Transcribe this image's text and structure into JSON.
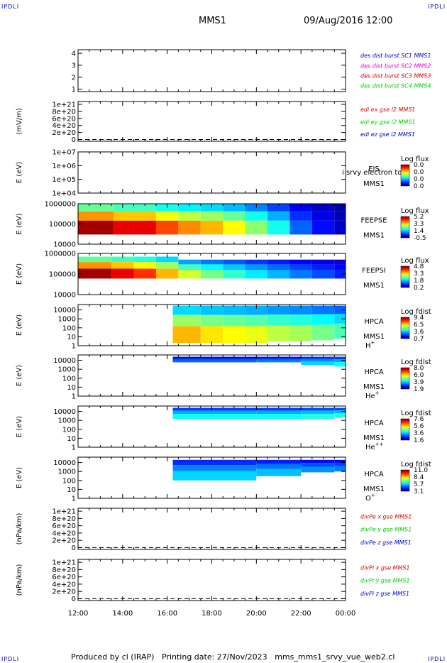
{
  "header": {
    "corner_label": "IPDLI",
    "title": "MMS1",
    "datetime": "09/Aug/2016 12:00"
  },
  "footer": {
    "produced_by": "Produced by cl (IRAP)",
    "printing_date": "Printing date: 27/Nov/2023",
    "script_name": "mms_mms1_srvy_vue_web2.cl"
  },
  "colors": {
    "red": "#dd0000",
    "green": "#00cc00",
    "blue": "#0000cc",
    "magenta": "#dd00dd",
    "line": "#000000"
  },
  "chart_data": [
    {
      "type": "line",
      "id": "des_dist_burst",
      "ylabel": "",
      "yticks": [
        "1",
        "2",
        "3",
        "4"
      ],
      "ylim": [
        0.8,
        4.3
      ],
      "series": [
        {
          "name": "des dist burst SC1 MMS1",
          "color": "#0000cc",
          "values": []
        },
        {
          "name": "des dist burst SC2 MMS2",
          "color": "#dd00dd",
          "values": []
        },
        {
          "name": "des dist burst SC3 MMS3",
          "color": "#dd0000",
          "values": []
        },
        {
          "name": "des dist burst SC4 MMS4",
          "color": "#00cc00",
          "values": []
        }
      ]
    },
    {
      "type": "line",
      "id": "edi_e_gse",
      "ylabel": "(mV/m)",
      "yticks": [
        "0",
        "2e+20",
        "4e+20",
        "6e+20",
        "8e+20",
        "1e+21"
      ],
      "ylim": [
        -5e+19,
        1.08e+21
      ],
      "zero_line": true,
      "series": [
        {
          "name": "edi ex gse l2 MMS1",
          "color": "#dd0000",
          "values": []
        },
        {
          "name": "edi ey gse l2 MMS1",
          "color": "#00cc00",
          "values": []
        },
        {
          "name": "edi ez gse l2 MMS1",
          "color": "#0000cc",
          "values": []
        }
      ]
    },
    {
      "type": "heatmap",
      "id": "eis",
      "ylabel": "E (eV)",
      "yscale": "log",
      "yticks": [
        "1e+04",
        "1e+05",
        "1e+06",
        "1e+07"
      ],
      "ylim": [
        10000,
        10000000
      ],
      "instrument": [
        "EIS",
        "MMS1"
      ],
      "overlay_text": "i srvy electron to",
      "colorbar": {
        "title": "Log flux",
        "labels": [
          "0.0",
          "0.0",
          "0.0",
          "0.0"
        ]
      },
      "spectrogram": []
    },
    {
      "type": "heatmap",
      "id": "feepse",
      "ylabel": "E (eV)",
      "yscale": "log",
      "yticks": [
        "10000",
        "100000",
        "1000000"
      ],
      "ylim": [
        10000,
        1000000
      ],
      "instrument": [
        "FEEPSE",
        "MMS1"
      ],
      "colorbar": {
        "title": "Log flux",
        "labels": [
          "5.2",
          "3.3",
          "1.4",
          "-0.5"
        ]
      },
      "spectrogram": [
        {
          "t": 12.0,
          "bottom": 30000,
          "top": 1000000,
          "level": 0.86
        },
        {
          "t": 13.6,
          "bottom": 30000,
          "top": 1000000,
          "level": 0.8
        },
        {
          "t": 14.5,
          "bottom": 30000,
          "top": 1000000,
          "level": 0.8
        },
        {
          "t": 15.5,
          "bottom": 30000,
          "top": 1000000,
          "level": 0.72
        },
        {
          "t": 16.5,
          "bottom": 30000,
          "top": 1000000,
          "level": 0.66
        },
        {
          "t": 17.5,
          "bottom": 30000,
          "top": 1000000,
          "level": 0.62
        },
        {
          "t": 18.5,
          "bottom": 30000,
          "top": 1000000,
          "level": 0.56
        },
        {
          "t": 19.5,
          "bottom": 30000,
          "top": 1000000,
          "level": 0.46
        },
        {
          "t": 20.5,
          "bottom": 30000,
          "top": 1000000,
          "level": 0.35
        },
        {
          "t": 21.5,
          "bottom": 30000,
          "top": 1000000,
          "level": 0.2
        },
        {
          "t": 22.5,
          "bottom": 30000,
          "top": 1000000,
          "level": 0.12
        },
        {
          "t": 23.5,
          "bottom": 30000,
          "top": 1000000,
          "level": 0.06
        }
      ]
    },
    {
      "type": "heatmap",
      "id": "feepsi",
      "ylabel": "E (eV)",
      "yscale": "log",
      "yticks": [
        "10000",
        "100000",
        "1000000"
      ],
      "ylim": [
        10000,
        1000000
      ],
      "instrument": [
        "FEEPSI",
        "MMS1"
      ],
      "colorbar": {
        "title": "Log flux",
        "labels": [
          "4.8",
          "3.3",
          "1.8",
          "0.2"
        ]
      },
      "spectrogram": [
        {
          "t": 12.0,
          "bottom": 60000,
          "top": 700000,
          "level": 0.86
        },
        {
          "t": 13.5,
          "bottom": 60000,
          "top": 700000,
          "level": 0.8
        },
        {
          "t": 14.5,
          "bottom": 60000,
          "top": 700000,
          "level": 0.74
        },
        {
          "t": 15.5,
          "bottom": 60000,
          "top": 700000,
          "level": 0.62
        },
        {
          "t": 16.5,
          "bottom": 60000,
          "top": 500000,
          "level": 0.52
        },
        {
          "t": 17.5,
          "bottom": 60000,
          "top": 500000,
          "level": 0.44
        },
        {
          "t": 18.5,
          "bottom": 60000,
          "top": 500000,
          "level": 0.38
        },
        {
          "t": 19.5,
          "bottom": 60000,
          "top": 500000,
          "level": 0.32
        },
        {
          "t": 20.5,
          "bottom": 60000,
          "top": 500000,
          "level": 0.27
        },
        {
          "t": 21.5,
          "bottom": 60000,
          "top": 500000,
          "level": 0.22
        },
        {
          "t": 22.5,
          "bottom": 60000,
          "top": 500000,
          "level": 0.18
        },
        {
          "t": 23.5,
          "bottom": 60000,
          "top": 500000,
          "level": 0.14
        }
      ]
    },
    {
      "type": "heatmap",
      "id": "hpca_h",
      "ylabel": "E (eV)",
      "yscale": "log",
      "yticks": [
        "1",
        "10",
        "100",
        "1000",
        "10000"
      ],
      "ylim": [
        1,
        40000
      ],
      "instrument": [
        "HPCA",
        "MMS1"
      ],
      "species": "H",
      "species_charge": "+",
      "colorbar": {
        "title": "Log fdist",
        "labels": [
          "9.4",
          "6.5",
          "3.6",
          "0.7"
        ]
      },
      "spectrogram": [
        {
          "t": 16.25,
          "bottom": 2,
          "top": 30000,
          "level": 0.62
        },
        {
          "t": 17.5,
          "bottom": 2,
          "top": 30000,
          "level": 0.58
        },
        {
          "t": 18.5,
          "bottom": 2,
          "top": 30000,
          "level": 0.56
        },
        {
          "t": 19.5,
          "bottom": 2,
          "top": 30000,
          "level": 0.54
        },
        {
          "t": 20.5,
          "bottom": 3,
          "top": 30000,
          "level": 0.5
        },
        {
          "t": 21.5,
          "bottom": 3,
          "top": 30000,
          "level": 0.48
        },
        {
          "t": 22.5,
          "bottom": 4,
          "top": 30000,
          "level": 0.44
        },
        {
          "t": 23.5,
          "bottom": 6,
          "top": 30000,
          "level": 0.4
        }
      ]
    },
    {
      "type": "heatmap",
      "id": "hpca_he",
      "ylabel": "E (eV)",
      "yscale": "log",
      "yticks": [
        "1",
        "10",
        "100",
        "1000",
        "10000"
      ],
      "ylim": [
        1,
        40000
      ],
      "instrument": [
        "HPCA",
        "MMS1"
      ],
      "species": "He",
      "species_charge": "+",
      "colorbar": {
        "title": "Log fdist",
        "labels": [
          "8.0",
          "6.0",
          "3.9",
          "1.9"
        ]
      },
      "spectrogram": [
        {
          "t": 16.25,
          "bottom": 6000,
          "top": 25000,
          "level": 0.2
        },
        {
          "t": 18.0,
          "bottom": 6000,
          "top": 25000,
          "level": 0.2
        },
        {
          "t": 20.0,
          "bottom": 6000,
          "top": 25000,
          "level": 0.22
        },
        {
          "t": 22.0,
          "bottom": 3000,
          "top": 25000,
          "level": 0.3
        },
        {
          "t": 23.5,
          "bottom": 2000,
          "top": 25000,
          "level": 0.34
        }
      ]
    },
    {
      "type": "heatmap",
      "id": "hpca_hepp",
      "ylabel": "E (eV)",
      "yscale": "log",
      "yticks": [
        "1",
        "10",
        "100",
        "1000",
        "10000"
      ],
      "ylim": [
        1,
        40000
      ],
      "instrument": [
        "HPCA",
        "MMS1"
      ],
      "species": "He",
      "species_charge": "++",
      "colorbar": {
        "title": "Log fdist",
        "labels": [
          "7.6",
          "5.6",
          "3.6",
          "1.6"
        ]
      },
      "spectrogram": [
        {
          "t": 16.25,
          "bottom": 1500,
          "top": 25000,
          "level": 0.34
        },
        {
          "t": 18.0,
          "bottom": 1500,
          "top": 25000,
          "level": 0.34
        },
        {
          "t": 20.0,
          "bottom": 1500,
          "top": 25000,
          "level": 0.34
        },
        {
          "t": 22.0,
          "bottom": 1500,
          "top": 25000,
          "level": 0.36
        },
        {
          "t": 23.5,
          "bottom": 2000,
          "top": 25000,
          "level": 0.36
        }
      ]
    },
    {
      "type": "heatmap",
      "id": "hpca_o",
      "ylabel": "E (eV)",
      "yscale": "log",
      "yticks": [
        "1",
        "10",
        "100",
        "1000",
        "10000"
      ],
      "ylim": [
        1,
        40000
      ],
      "instrument": [
        "HPCA",
        "MMS1"
      ],
      "species": "O",
      "species_charge": "+",
      "colorbar": {
        "title": "Log fdist",
        "labels": [
          "11.0",
          "8.4",
          "5.7",
          "3.1"
        ]
      },
      "spectrogram": [
        {
          "t": 16.25,
          "bottom": 100,
          "top": 20000,
          "level": 0.3
        },
        {
          "t": 18.0,
          "bottom": 100,
          "top": 20000,
          "level": 0.3
        },
        {
          "t": 20.0,
          "bottom": 300,
          "top": 20000,
          "level": 0.28
        },
        {
          "t": 22.0,
          "bottom": 800,
          "top": 20000,
          "level": 0.24
        },
        {
          "t": 23.5,
          "bottom": 1000,
          "top": 20000,
          "level": 0.22
        }
      ]
    },
    {
      "type": "line",
      "id": "divpe_gse",
      "ylabel": "(nPa/km)",
      "yticks": [
        "0",
        "2e+20",
        "4e+20",
        "6e+20",
        "8e+20",
        "1e+21"
      ],
      "ylim": [
        -5e+19,
        1.08e+21
      ],
      "zero_line": true,
      "series": [
        {
          "name": "divPe x gse MMS1",
          "color": "#dd0000",
          "values": []
        },
        {
          "name": "divPe y gse MMS1",
          "color": "#00cc00",
          "values": []
        },
        {
          "name": "divPe z gse MMS1",
          "color": "#0000cc",
          "values": []
        }
      ]
    },
    {
      "type": "line",
      "id": "divpi_gse",
      "ylabel": "(nPa/km)",
      "yticks": [
        "0",
        "2e+20",
        "4e+20",
        "6e+20",
        "8e+20",
        "1e+21"
      ],
      "ylim": [
        -5e+19,
        1.08e+21
      ],
      "zero_line": true,
      "series": [
        {
          "name": "divPi x gse MMS1",
          "color": "#dd0000",
          "values": []
        },
        {
          "name": "divPi y gse MMS1",
          "color": "#00cc00",
          "values": []
        },
        {
          "name": "divPi z gse MMS1",
          "color": "#0000cc",
          "values": []
        }
      ]
    }
  ],
  "time_axis": {
    "labels": [
      "12:00",
      "14:00",
      "16:00",
      "18:00",
      "20:00",
      "22:00",
      "00:00"
    ],
    "values": [
      12,
      14,
      16,
      18,
      20,
      22,
      24
    ],
    "range": [
      12,
      24
    ]
  }
}
